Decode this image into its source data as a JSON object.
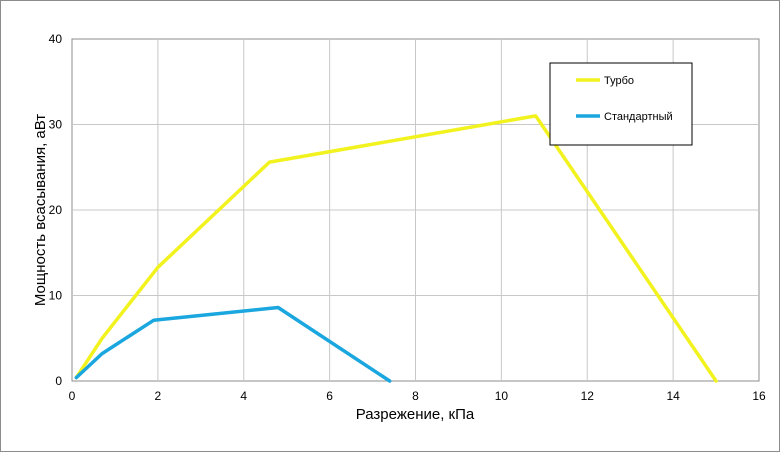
{
  "chart_data": {
    "type": "line",
    "xlabel": "Разрежение, кПа",
    "ylabel": "Мощность всасывания, аВт",
    "xlim": [
      0,
      16
    ],
    "ylim": [
      0,
      40
    ],
    "x_ticks": [
      "0",
      "2",
      "4",
      "6",
      "8",
      "10",
      "12",
      "14",
      "16"
    ],
    "y_ticks": [
      "0",
      "10",
      "20",
      "30",
      "40"
    ],
    "grid": true,
    "legend_position": "top-right",
    "series": [
      {
        "name": "Турбо",
        "color": "#f2f21e",
        "points": [
          [
            0.1,
            0.4
          ],
          [
            0.7,
            5.0
          ],
          [
            2.0,
            13.3
          ],
          [
            4.6,
            25.6
          ],
          [
            10.8,
            31.0
          ],
          [
            15.0,
            0.0
          ]
        ]
      },
      {
        "name": "Стандартный",
        "color": "#1aa6de",
        "points": [
          [
            0.1,
            0.4
          ],
          [
            0.7,
            3.2
          ],
          [
            1.9,
            7.1
          ],
          [
            4.8,
            8.6
          ],
          [
            7.4,
            0.0
          ]
        ]
      }
    ]
  }
}
